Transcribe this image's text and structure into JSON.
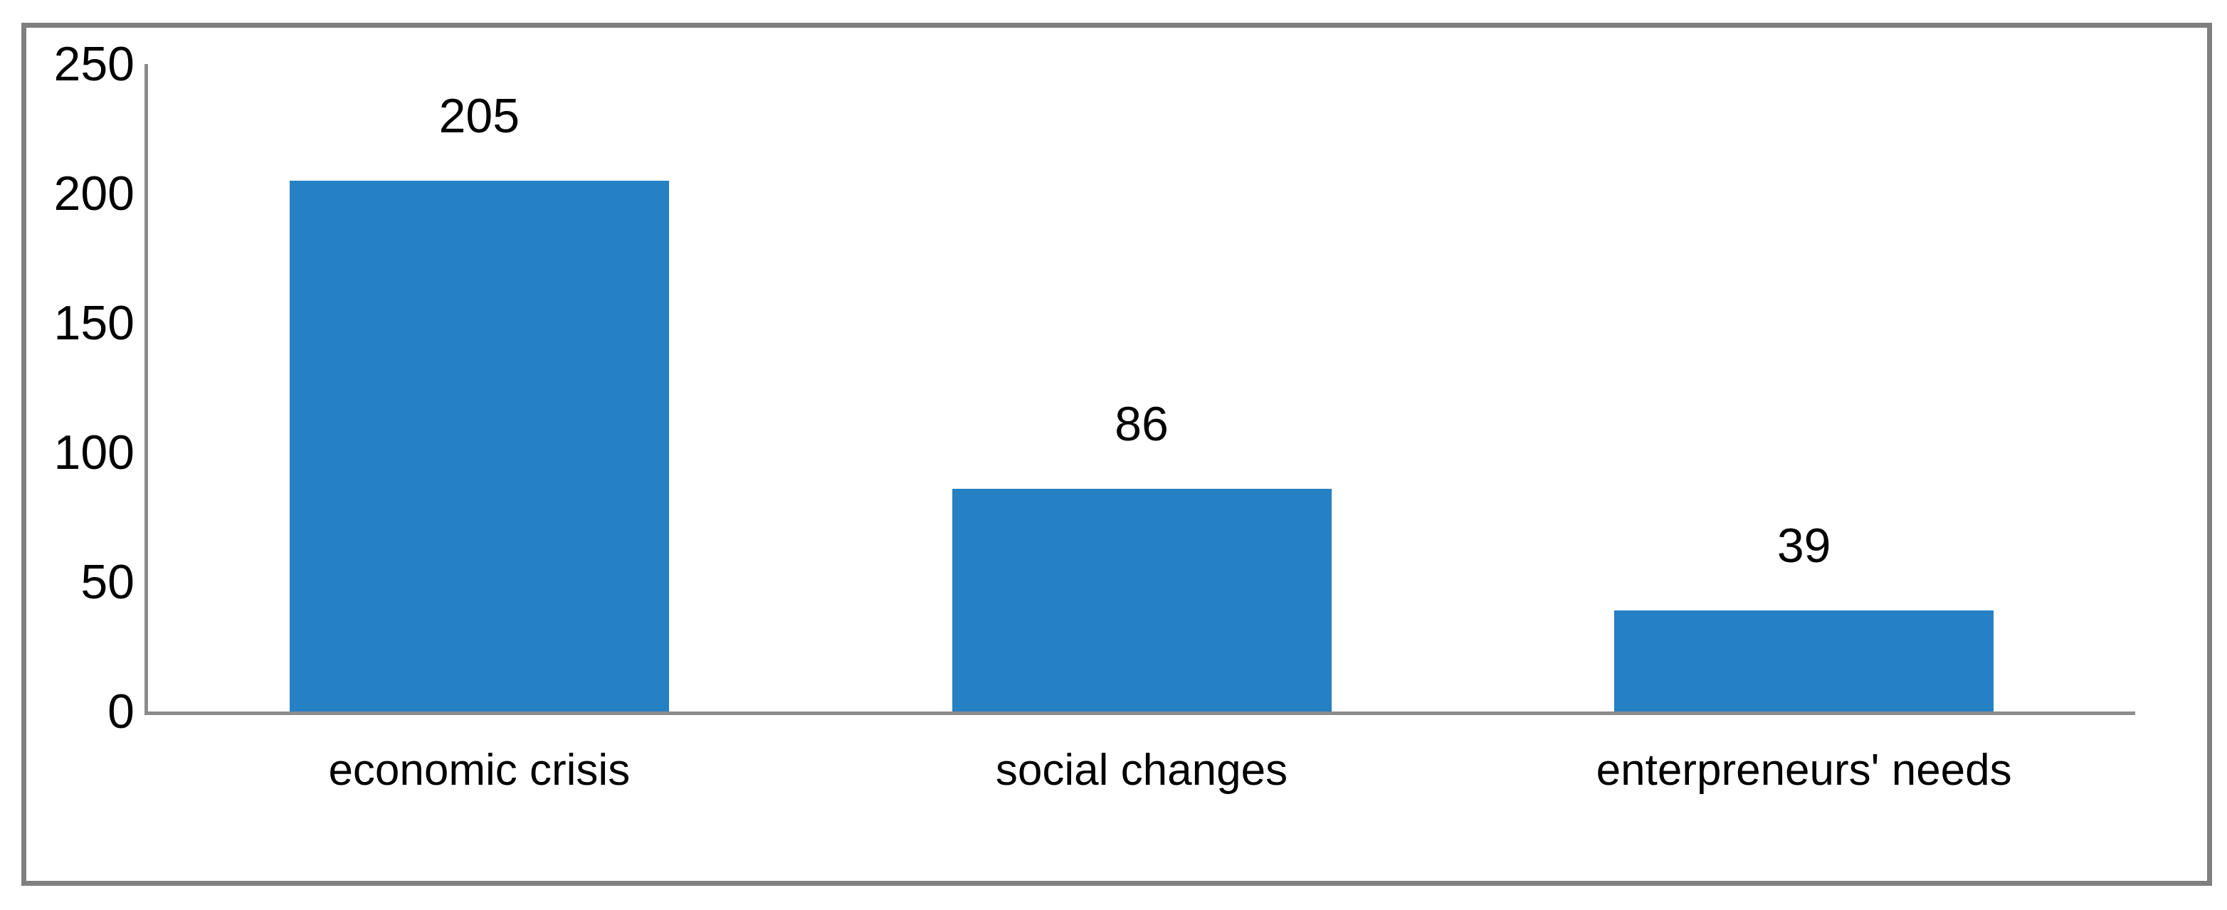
{
  "chart_data": {
    "type": "bar",
    "title": "",
    "xlabel": "",
    "ylabel": "",
    "categories": [
      "economic crisis",
      "social changes",
      "enterpreneurs' needs"
    ],
    "values": [
      205,
      86,
      39
    ],
    "data_labels": [
      "205",
      "86",
      "39"
    ],
    "series": [
      {
        "name": "",
        "values": [
          205,
          86,
          39
        ]
      }
    ],
    "yticks": [
      "0",
      "50",
      "100",
      "150",
      "200",
      "250"
    ],
    "ytick_values": [
      0,
      50,
      100,
      150,
      200,
      250
    ],
    "ylim": [
      0,
      250
    ],
    "grid": false,
    "legend": false,
    "legend_position": "none",
    "bar_color": "#2580c4",
    "axis_color": "#8c8c8c",
    "figure_border_color": "#7f7f7f",
    "text_color": "#000000",
    "background_color": "#ffffff"
  }
}
